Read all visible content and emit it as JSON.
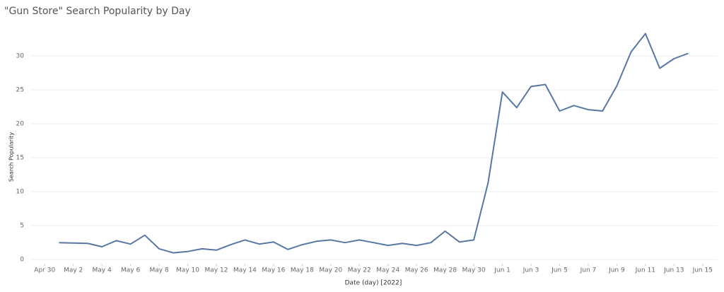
{
  "chart_data": {
    "type": "line",
    "title": "\"Gun Store\" Search Popularity by Day",
    "x_label": "Date (day) [2022]",
    "y_label": "Search Popularity",
    "x": [
      "2022-05-01",
      "2022-05-02",
      "2022-05-03",
      "2022-05-04",
      "2022-05-05",
      "2022-05-06",
      "2022-05-07",
      "2022-05-08",
      "2022-05-09",
      "2022-05-10",
      "2022-05-11",
      "2022-05-12",
      "2022-05-13",
      "2022-05-14",
      "2022-05-15",
      "2022-05-16",
      "2022-05-17",
      "2022-05-18",
      "2022-05-19",
      "2022-05-20",
      "2022-05-21",
      "2022-05-22",
      "2022-05-23",
      "2022-05-24",
      "2022-05-25",
      "2022-05-26",
      "2022-05-27",
      "2022-05-28",
      "2022-05-29",
      "2022-05-30",
      "2022-05-31",
      "2022-06-01",
      "2022-06-02",
      "2022-06-03",
      "2022-06-04",
      "2022-06-05",
      "2022-06-06",
      "2022-06-07",
      "2022-06-08",
      "2022-06-09",
      "2022-06-10",
      "2022-06-11",
      "2022-06-12",
      "2022-06-13",
      "2022-06-14"
    ],
    "series": [
      {
        "name": "Search Popularity",
        "color": "#5778a4",
        "values": [
          2.5,
          2.45,
          2.4,
          1.9,
          2.8,
          2.3,
          3.6,
          1.6,
          1.0,
          1.2,
          1.6,
          1.4,
          2.2,
          2.9,
          2.3,
          2.6,
          1.5,
          2.2,
          2.7,
          2.9,
          2.5,
          2.9,
          2.5,
          2.1,
          2.4,
          2.1,
          2.5,
          4.2,
          2.6,
          2.9,
          11.3,
          24.7,
          22.4,
          25.5,
          25.8,
          21.9,
          22.7,
          22.1,
          21.9,
          25.6,
          30.6,
          33.3,
          28.2,
          29.6,
          30.4
        ]
      }
    ],
    "xlim": [
      "2022-04-29",
      "2022-06-16"
    ],
    "xticks": [
      {
        "value": "2022-04-30",
        "label": "Apr 30"
      },
      {
        "value": "2022-05-02",
        "label": "May 2"
      },
      {
        "value": "2022-05-04",
        "label": "May 4"
      },
      {
        "value": "2022-05-06",
        "label": "May 6"
      },
      {
        "value": "2022-05-08",
        "label": "May 8"
      },
      {
        "value": "2022-05-10",
        "label": "May 10"
      },
      {
        "value": "2022-05-12",
        "label": "May 12"
      },
      {
        "value": "2022-05-14",
        "label": "May 14"
      },
      {
        "value": "2022-05-16",
        "label": "May 16"
      },
      {
        "value": "2022-05-18",
        "label": "May 18"
      },
      {
        "value": "2022-05-20",
        "label": "May 20"
      },
      {
        "value": "2022-05-22",
        "label": "May 22"
      },
      {
        "value": "2022-05-24",
        "label": "May 24"
      },
      {
        "value": "2022-05-26",
        "label": "May 26"
      },
      {
        "value": "2022-05-28",
        "label": "May 28"
      },
      {
        "value": "2022-05-30",
        "label": "May 30"
      },
      {
        "value": "2022-06-01",
        "label": "Jun 1"
      },
      {
        "value": "2022-06-03",
        "label": "Jun 3"
      },
      {
        "value": "2022-06-05",
        "label": "Jun 5"
      },
      {
        "value": "2022-06-07",
        "label": "Jun 7"
      },
      {
        "value": "2022-06-09",
        "label": "Jun 9"
      },
      {
        "value": "2022-06-11",
        "label": "Jun 11"
      },
      {
        "value": "2022-06-13",
        "label": "Jun 13"
      },
      {
        "value": "2022-06-15",
        "label": "Jun 15"
      }
    ],
    "ylim": [
      -0.6,
      34.5
    ],
    "yticks": [
      0,
      5,
      10,
      15,
      20,
      25,
      30
    ],
    "grid": true
  }
}
